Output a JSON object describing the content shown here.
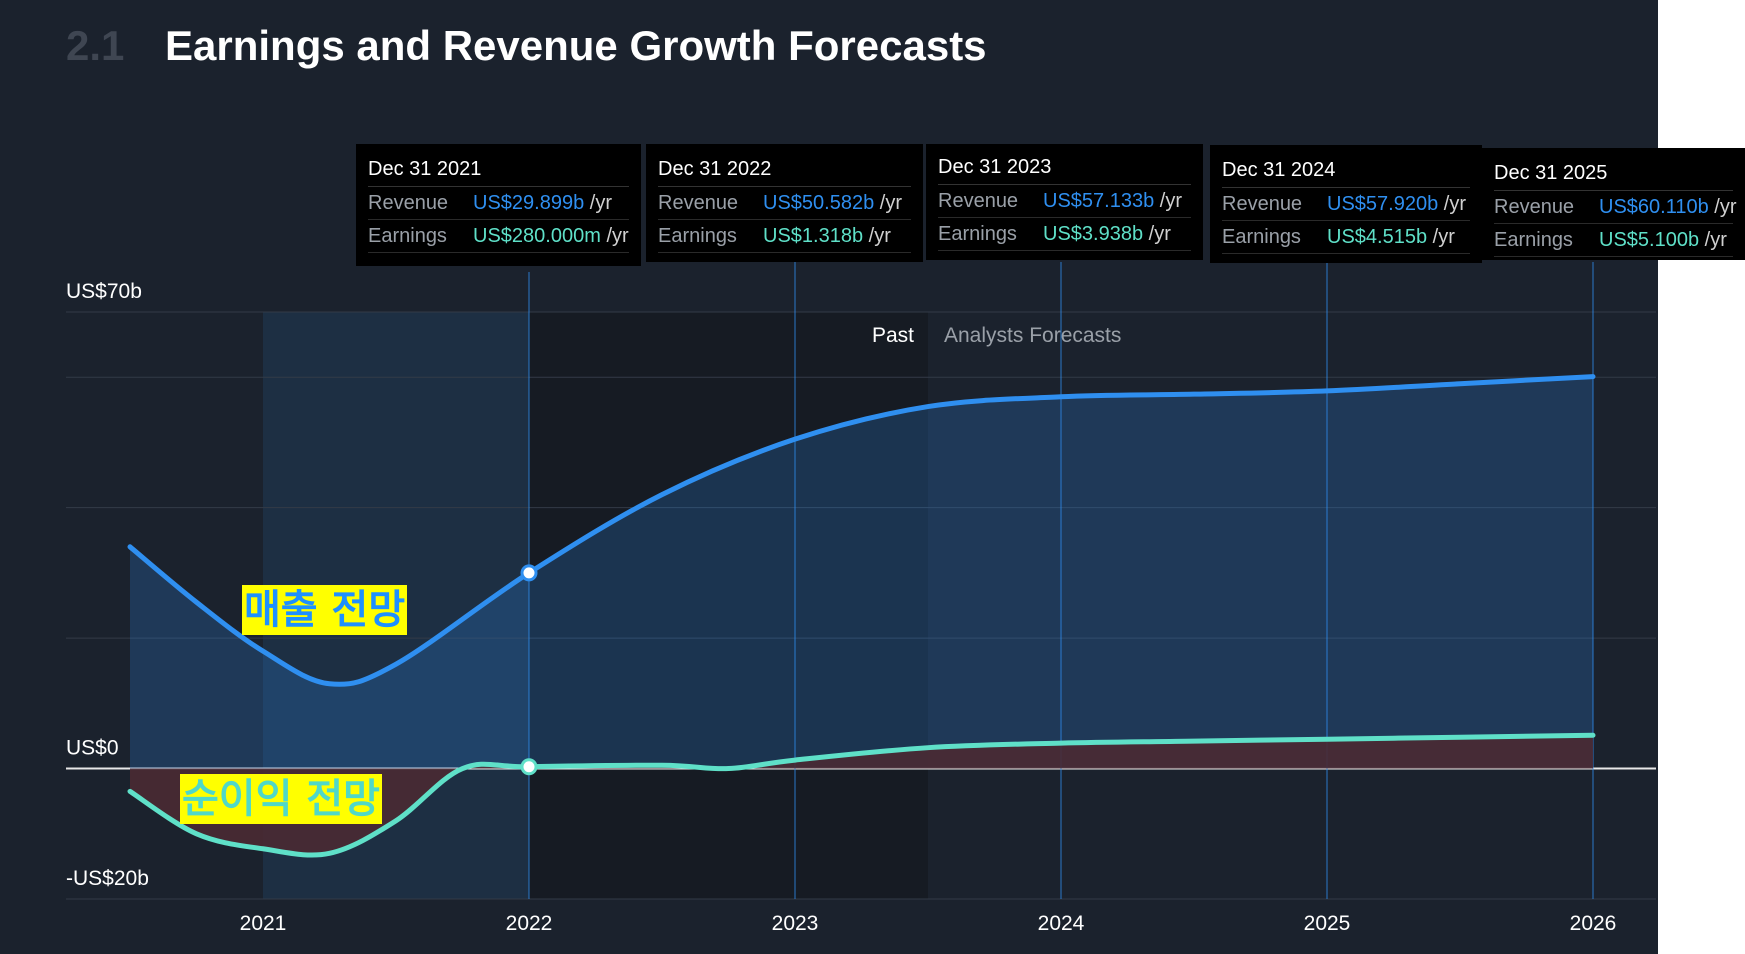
{
  "header": {
    "section_number": "2.1",
    "title": "Earnings and Revenue Growth Forecasts"
  },
  "legend": {
    "past": "Past",
    "forecast": "Analysts Forecasts"
  },
  "annotations": {
    "revenue_label": "매출 전망",
    "earnings_label": "순이익 전망"
  },
  "tooltips": [
    {
      "date": "Dec 31 2021",
      "revenue_label": "Revenue",
      "revenue": "US$29.899b",
      "earnings_label": "Earnings",
      "earnings": "US$280.000m",
      "unit": "/yr"
    },
    {
      "date": "Dec 31 2022",
      "revenue_label": "Revenue",
      "revenue": "US$50.582b",
      "earnings_label": "Earnings",
      "earnings": "US$1.318b",
      "unit": "/yr"
    },
    {
      "date": "Dec 31 2023",
      "revenue_label": "Revenue",
      "revenue": "US$57.133b",
      "earnings_label": "Earnings",
      "earnings": "US$3.938b",
      "unit": "/yr"
    },
    {
      "date": "Dec 31 2024",
      "revenue_label": "Revenue",
      "revenue": "US$57.920b",
      "earnings_label": "Earnings",
      "earnings": "US$4.515b",
      "unit": "/yr"
    },
    {
      "date": "Dec 31 2025",
      "revenue_label": "Revenue",
      "revenue": "US$60.110b",
      "earnings_label": "Earnings",
      "earnings": "US$5.100b",
      "unit": "/yr"
    }
  ],
  "colors": {
    "background": "#1b222d",
    "revenue": "#2f8ff0",
    "earnings": "#5fe0c8",
    "loss_fill": "#4a2a33",
    "past_shade": "#161b23"
  },
  "chart_data": {
    "type": "line",
    "title": "Earnings and Revenue Growth Forecasts",
    "y_tick_labels": [
      "US$70b",
      "US$0",
      "-US$20b"
    ],
    "x_tick_labels": [
      "2021",
      "2022",
      "2023",
      "2024",
      "2025",
      "2026"
    ],
    "ylim": [
      -20,
      70
    ],
    "xlim": [
      2020.5,
      2026
    ],
    "grid": true,
    "series": [
      {
        "name": "Revenue",
        "x": [
          2020.5,
          2020.75,
          2021.0,
          2021.25,
          2021.5,
          2022.0,
          2022.5,
          2023.0,
          2023.5,
          2024.0,
          2024.5,
          2025.0,
          2025.5,
          2026.0
        ],
        "values": [
          34,
          25.5,
          18,
          13,
          16,
          30,
          42,
          50.5,
          55.5,
          57,
          57.4,
          57.9,
          59,
          60.1
        ]
      },
      {
        "name": "Earnings",
        "x": [
          2020.5,
          2020.75,
          2021.0,
          2021.25,
          2021.5,
          2021.75,
          2022.0,
          2022.5,
          2022.75,
          2023.0,
          2023.5,
          2024.0,
          2024.5,
          2025.0,
          2025.5,
          2026.0
        ],
        "values": [
          -3.5,
          -10,
          -12.3,
          -13,
          -8,
          0,
          0.28,
          0.5,
          0,
          1.3,
          3.2,
          3.9,
          4.2,
          4.5,
          4.8,
          5.1
        ]
      }
    ],
    "highlight_x": 2022.0,
    "past_until": 2023.5
  }
}
